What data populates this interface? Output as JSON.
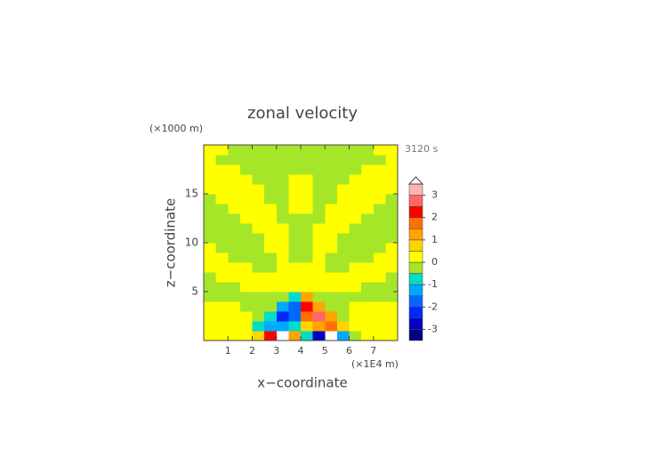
{
  "chart_data": {
    "type": "heatmap",
    "title": "zonal velocity",
    "x_label": "x−coordinate",
    "y_label": "z−coordinate",
    "x_unit": "(×1E4 m)",
    "y_unit": "(×1000 m)",
    "time_label": "3120 s",
    "xlim": [
      0,
      8
    ],
    "ylim": [
      0,
      20
    ],
    "xticks": [
      1,
      2,
      3,
      4,
      5,
      6,
      7
    ],
    "yticks": [
      5,
      10,
      15
    ],
    "x": [
      0.25,
      0.75,
      1.25,
      1.75,
      2.25,
      2.75,
      3.25,
      3.75,
      4.25,
      4.75,
      5.25,
      5.75,
      6.25,
      6.75,
      7.25,
      7.75
    ],
    "y": [
      0.5,
      1.5,
      2.5,
      3.5,
      4.5,
      5.5,
      6.5,
      7.5,
      8.5,
      9.5,
      10.5,
      11.5,
      12.5,
      13.5,
      14.5,
      15.5,
      16.5,
      17.5,
      18.5,
      19.5
    ],
    "z": [
      [
        0.2,
        0.2,
        0.2,
        0.2,
        0.8,
        2.4,
        4.0,
        1.2,
        -1.0,
        -3.0,
        -4.0,
        -1.5,
        -0.2,
        0.2,
        0.2,
        0.2
      ],
      [
        0.2,
        0.2,
        0.2,
        0.2,
        -0.6,
        -1.4,
        -1.2,
        -0.6,
        0.8,
        1.4,
        1.6,
        0.6,
        0.2,
        0.2,
        0.2,
        0.2
      ],
      [
        0.2,
        0.2,
        0.2,
        0.2,
        -0.2,
        -0.8,
        -2.3,
        -1.6,
        1.8,
        2.6,
        1.0,
        -0.2,
        0.2,
        0.2,
        0.2,
        0.2
      ],
      [
        0.2,
        0.2,
        0.2,
        -0.2,
        -0.2,
        -0.2,
        -1.2,
        -1.8,
        2.0,
        1.2,
        -0.2,
        -0.2,
        0.2,
        0.2,
        0.2,
        0.2
      ],
      [
        -0.2,
        -0.2,
        -0.2,
        -0.2,
        -0.2,
        -0.2,
        -0.2,
        -0.8,
        1.0,
        -0.2,
        -0.2,
        -0.2,
        -0.2,
        -0.2,
        -0.2,
        -0.2
      ],
      [
        -0.2,
        -0.2,
        -0.2,
        0.2,
        0.2,
        0.2,
        0.2,
        0.2,
        0.2,
        0.2,
        0.2,
        0.2,
        0.2,
        -0.2,
        -0.2,
        -0.2
      ],
      [
        -0.2,
        0.2,
        0.2,
        0.2,
        0.2,
        0.2,
        0.2,
        0.2,
        0.2,
        0.2,
        0.2,
        0.2,
        0.2,
        0.2,
        0.2,
        -0.2
      ],
      [
        0.2,
        0.2,
        0.2,
        0.2,
        -0.2,
        -0.2,
        0.2,
        0.2,
        0.2,
        0.2,
        -0.2,
        -0.2,
        0.2,
        0.2,
        0.2,
        0.2
      ],
      [
        0.2,
        0.2,
        -0.2,
        -0.2,
        -0.2,
        -0.2,
        0.2,
        -0.2,
        -0.2,
        0.2,
        -0.2,
        -0.2,
        -0.2,
        -0.2,
        0.2,
        0.2
      ],
      [
        0.2,
        -0.2,
        -0.2,
        -0.2,
        -0.2,
        0.2,
        0.2,
        -0.2,
        -0.2,
        0.2,
        0.2,
        -0.2,
        -0.2,
        -0.2,
        -0.2,
        0.2
      ],
      [
        -0.2,
        -0.2,
        -0.2,
        -0.2,
        -0.2,
        0.2,
        0.2,
        -0.2,
        -0.2,
        0.2,
        0.2,
        -0.2,
        -0.2,
        -0.2,
        -0.2,
        -0.2
      ],
      [
        -0.2,
        -0.2,
        -0.2,
        -0.2,
        0.2,
        0.2,
        0.2,
        -0.2,
        -0.2,
        0.2,
        0.2,
        0.2,
        -0.2,
        -0.2,
        -0.2,
        -0.2
      ],
      [
        -0.2,
        -0.2,
        -0.2,
        0.2,
        0.2,
        0.2,
        -0.2,
        -0.2,
        -0.2,
        -0.2,
        0.2,
        0.2,
        0.2,
        -0.2,
        -0.2,
        -0.2
      ],
      [
        -0.2,
        -0.2,
        0.2,
        0.2,
        0.2,
        0.2,
        -0.2,
        0.2,
        0.2,
        -0.2,
        0.2,
        0.2,
        0.2,
        0.2,
        -0.2,
        -0.2
      ],
      [
        -0.2,
        0.2,
        0.2,
        0.2,
        0.2,
        -0.2,
        -0.2,
        0.2,
        0.2,
        -0.2,
        -0.2,
        0.2,
        0.2,
        0.2,
        0.2,
        -0.2
      ],
      [
        0.2,
        0.2,
        0.2,
        0.2,
        0.2,
        -0.2,
        -0.2,
        0.2,
        0.2,
        -0.2,
        -0.2,
        0.2,
        0.2,
        0.2,
        0.2,
        0.2
      ],
      [
        0.2,
        0.2,
        0.2,
        0.2,
        -0.2,
        -0.2,
        -0.2,
        0.2,
        0.2,
        -0.2,
        -0.2,
        -0.2,
        0.2,
        0.2,
        0.2,
        0.2
      ],
      [
        0.2,
        0.2,
        0.2,
        -0.2,
        -0.2,
        -0.2,
        -0.2,
        -0.2,
        -0.2,
        -0.2,
        -0.2,
        -0.2,
        -0.2,
        0.2,
        0.2,
        0.2
      ],
      [
        0.2,
        -0.2,
        -0.2,
        -0.2,
        -0.2,
        -0.2,
        -0.2,
        -0.2,
        -0.2,
        -0.2,
        -0.2,
        -0.2,
        -0.2,
        -0.2,
        -0.2,
        0.2
      ],
      [
        0.2,
        0.2,
        -0.2,
        -0.2,
        -0.2,
        -0.2,
        -0.2,
        -0.2,
        -0.2,
        -0.2,
        -0.2,
        -0.2,
        -0.2,
        -0.2,
        0.2,
        0.2
      ]
    ],
    "colorbar": {
      "levels": [
        -3.5,
        -3,
        -2.5,
        -2,
        -1.5,
        -1,
        -0.5,
        0,
        0.5,
        1,
        1.5,
        2,
        2.5,
        3,
        3.5
      ],
      "colors": [
        "#000080",
        "#0000c8",
        "#0028ff",
        "#0068ff",
        "#00a8ff",
        "#00dcc8",
        "#a6e628",
        "#ffff00",
        "#ffd400",
        "#ffa400",
        "#ff7000",
        "#ff0000",
        "#ff6868",
        "#ffb4b4"
      ],
      "ticks": [
        -3,
        -2,
        -1,
        0,
        1,
        2,
        3
      ]
    }
  }
}
